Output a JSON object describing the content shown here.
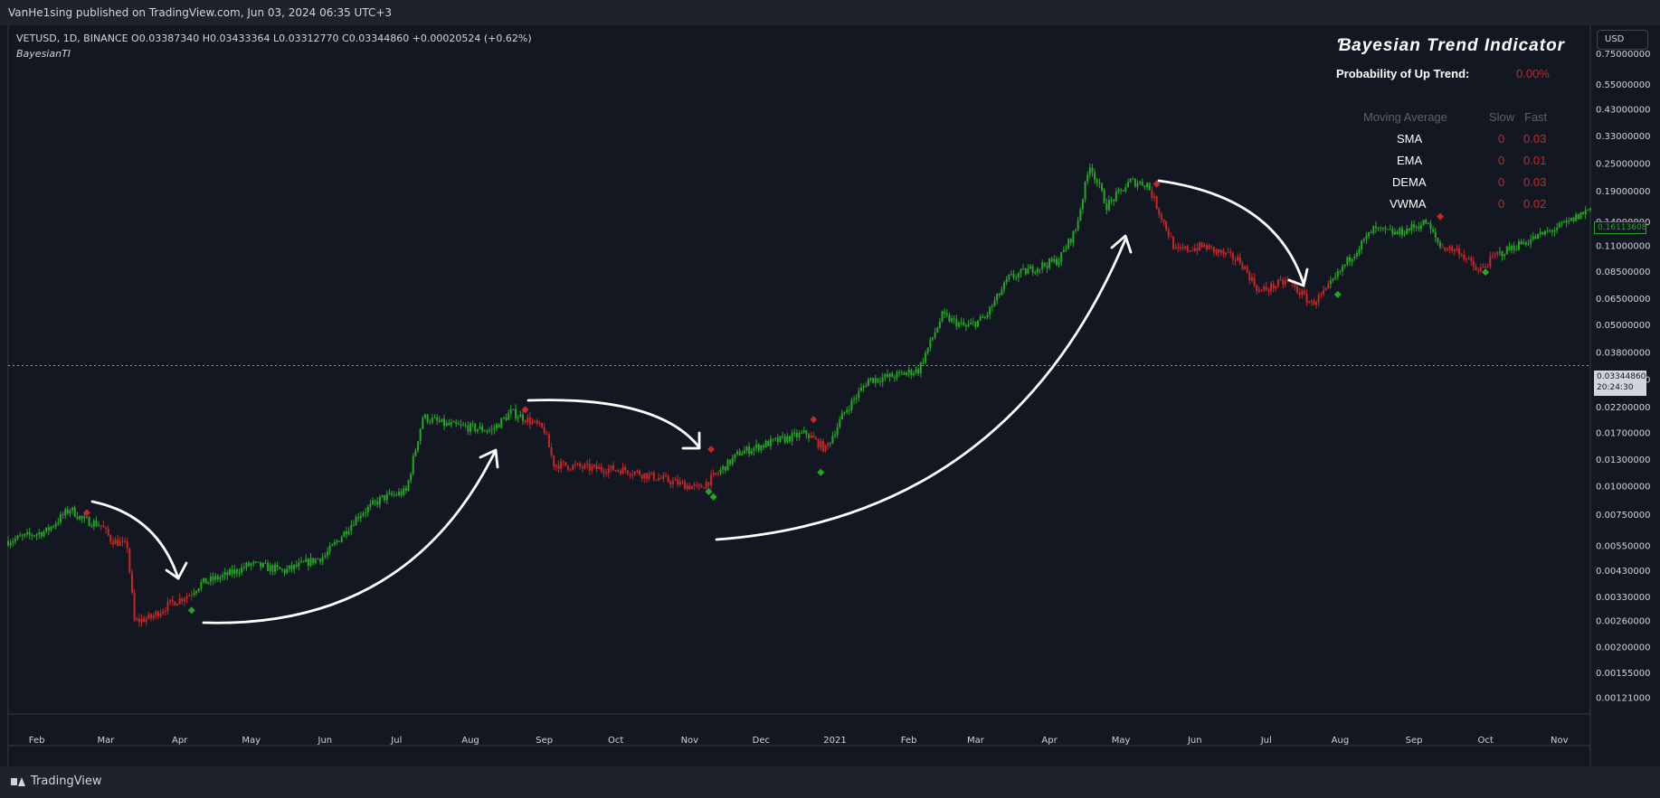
{
  "header": {
    "published": "VanHe1sing published on TradingView.com, Jun 03, 2024 06:35 UTC+3"
  },
  "legend": {
    "symbol_line": "VETUSD, 1D, BINANCE  O0.03387340  H0.03433364  L0.03312770  C0.03344860  +0.00020524 (+0.62%)",
    "indicator": "BayesianTI"
  },
  "currency_button": "USD",
  "indicator_table": {
    "title": "Ɓayesian Trend Indicator",
    "probability_label": "Probability of Up Trend:",
    "probability_value": "0.00%",
    "col_ma": "Moving Average",
    "col_slow": "Slow",
    "col_fast": "Fast",
    "rows": [
      {
        "name": "SMA",
        "slow": "0",
        "fast": "0.03"
      },
      {
        "name": "EMA",
        "slow": "0",
        "fast": "0.01"
      },
      {
        "name": "DEMA",
        "slow": "0",
        "fast": "0.03"
      },
      {
        "name": "VWMA",
        "slow": "0",
        "fast": "0.02"
      }
    ]
  },
  "price_tags": {
    "last_price": "0.16113608",
    "crosshair_price": "0.03344860",
    "crosshair_time": "20:24:30"
  },
  "footer": {
    "brand": "TradingView"
  },
  "colors": {
    "background": "#131722",
    "bull": "#26a626",
    "bear": "#c62828",
    "text": "#d1d4dc"
  },
  "chart_data": {
    "type": "candlestick",
    "y_scale": "log",
    "ylim": [
      0.00105,
      0.93
    ],
    "y_ticks": [
      "0.75000000",
      "0.55000000",
      "0.43000000",
      "0.33000000",
      "0.25000000",
      "0.19000000",
      "0.14000000",
      "0.11000000",
      "0.08500000",
      "0.06500000",
      "0.05000000",
      "0.03800000",
      "0.02900000",
      "0.02200000",
      "0.01700000",
      "0.01300000",
      "0.01000000",
      "0.00750000",
      "0.00550000",
      "0.00430000",
      "0.00330000",
      "0.00260000",
      "0.00200000",
      "0.00155000",
      "0.00121000"
    ],
    "x_range": [
      "2020-01-20",
      "2021-11-14"
    ],
    "x_ticks": [
      {
        "date": "2020-02-01",
        "label": "Feb"
      },
      {
        "date": "2020-03-01",
        "label": "Mar"
      },
      {
        "date": "2020-04-01",
        "label": "Apr"
      },
      {
        "date": "2020-05-01",
        "label": "May"
      },
      {
        "date": "2020-06-01",
        "label": "Jun"
      },
      {
        "date": "2020-07-01",
        "label": "Jul"
      },
      {
        "date": "2020-08-01",
        "label": "Aug"
      },
      {
        "date": "2020-09-01",
        "label": "Sep"
      },
      {
        "date": "2020-10-01",
        "label": "Oct"
      },
      {
        "date": "2020-11-01",
        "label": "Nov"
      },
      {
        "date": "2020-12-01",
        "label": "Dec"
      },
      {
        "date": "2021-01-01",
        "label": "2021"
      },
      {
        "date": "2021-02-01",
        "label": "Feb"
      },
      {
        "date": "2021-03-01",
        "label": "Mar"
      },
      {
        "date": "2021-04-01",
        "label": "Apr"
      },
      {
        "date": "2021-05-01",
        "label": "May"
      },
      {
        "date": "2021-06-01",
        "label": "Jun"
      },
      {
        "date": "2021-07-01",
        "label": "Jul"
      },
      {
        "date": "2021-08-01",
        "label": "Aug"
      },
      {
        "date": "2021-09-01",
        "label": "Sep"
      },
      {
        "date": "2021-10-01",
        "label": "Oct"
      },
      {
        "date": "2021-11-01",
        "label": "Nov"
      }
    ],
    "path": [
      {
        "date": "2020-01-20",
        "close": 0.0058
      },
      {
        "date": "2020-02-05",
        "close": 0.0064
      },
      {
        "date": "2020-02-15",
        "close": 0.008
      },
      {
        "date": "2020-02-20",
        "close": 0.0072
      },
      {
        "date": "2020-02-28",
        "close": 0.0068
      },
      {
        "date": "2020-03-03",
        "close": 0.0059
      },
      {
        "date": "2020-03-10",
        "close": 0.0055
      },
      {
        "date": "2020-03-13",
        "close": 0.0026
      },
      {
        "date": "2020-03-20",
        "close": 0.0027
      },
      {
        "date": "2020-03-28",
        "close": 0.0031
      },
      {
        "date": "2020-04-05",
        "close": 0.0034
      },
      {
        "date": "2020-04-10",
        "close": 0.0038
      },
      {
        "date": "2020-04-20",
        "close": 0.0041
      },
      {
        "date": "2020-05-01",
        "close": 0.0046
      },
      {
        "date": "2020-05-15",
        "close": 0.0043
      },
      {
        "date": "2020-06-01",
        "close": 0.005
      },
      {
        "date": "2020-06-15",
        "close": 0.0075
      },
      {
        "date": "2020-06-25",
        "close": 0.0089
      },
      {
        "date": "2020-07-05",
        "close": 0.0095
      },
      {
        "date": "2020-07-12",
        "close": 0.02
      },
      {
        "date": "2020-07-22",
        "close": 0.0185
      },
      {
        "date": "2020-08-01",
        "close": 0.018
      },
      {
        "date": "2020-08-10",
        "close": 0.0175
      },
      {
        "date": "2020-08-18",
        "close": 0.021
      },
      {
        "date": "2020-08-25",
        "close": 0.0195
      },
      {
        "date": "2020-09-01",
        "close": 0.0175
      },
      {
        "date": "2020-09-05",
        "close": 0.0125
      },
      {
        "date": "2020-09-20",
        "close": 0.012
      },
      {
        "date": "2020-10-05",
        "close": 0.0118
      },
      {
        "date": "2020-10-20",
        "close": 0.0108
      },
      {
        "date": "2020-11-05",
        "close": 0.0098
      },
      {
        "date": "2020-11-12",
        "close": 0.0112
      },
      {
        "date": "2020-11-22",
        "close": 0.014
      },
      {
        "date": "2020-12-05",
        "close": 0.0155
      },
      {
        "date": "2020-12-20",
        "close": 0.017
      },
      {
        "date": "2020-12-28",
        "close": 0.0145
      },
      {
        "date": "2021-01-05",
        "close": 0.021
      },
      {
        "date": "2021-01-15",
        "close": 0.029
      },
      {
        "date": "2021-01-25",
        "close": 0.03
      },
      {
        "date": "2021-02-05",
        "close": 0.032
      },
      {
        "date": "2021-02-15",
        "close": 0.055
      },
      {
        "date": "2021-02-25",
        "close": 0.049
      },
      {
        "date": "2021-03-05",
        "close": 0.054
      },
      {
        "date": "2021-03-15",
        "close": 0.08
      },
      {
        "date": "2021-03-25",
        "close": 0.088
      },
      {
        "date": "2021-04-05",
        "close": 0.096
      },
      {
        "date": "2021-04-12",
        "close": 0.13
      },
      {
        "date": "2021-04-18",
        "close": 0.25
      },
      {
        "date": "2021-04-25",
        "close": 0.165
      },
      {
        "date": "2021-05-05",
        "close": 0.21
      },
      {
        "date": "2021-05-12",
        "close": 0.205
      },
      {
        "date": "2021-05-19",
        "close": 0.14
      },
      {
        "date": "2021-05-24",
        "close": 0.105
      },
      {
        "date": "2021-06-05",
        "close": 0.11
      },
      {
        "date": "2021-06-20",
        "close": 0.095
      },
      {
        "date": "2021-06-28",
        "close": 0.07
      },
      {
        "date": "2021-07-10",
        "close": 0.078
      },
      {
        "date": "2021-07-20",
        "close": 0.062
      },
      {
        "date": "2021-07-26",
        "close": 0.07
      },
      {
        "date": "2021-08-05",
        "close": 0.098
      },
      {
        "date": "2021-08-15",
        "close": 0.13
      },
      {
        "date": "2021-08-25",
        "close": 0.125
      },
      {
        "date": "2021-09-06",
        "close": 0.14
      },
      {
        "date": "2021-09-12",
        "close": 0.11
      },
      {
        "date": "2021-09-20",
        "close": 0.105
      },
      {
        "date": "2021-09-28",
        "close": 0.085
      },
      {
        "date": "2021-10-05",
        "close": 0.1
      },
      {
        "date": "2021-10-15",
        "close": 0.112
      },
      {
        "date": "2021-10-25",
        "close": 0.124
      },
      {
        "date": "2021-11-05",
        "close": 0.14
      },
      {
        "date": "2021-11-14",
        "close": 0.1611
      }
    ],
    "bearish_segments": [
      [
        "2020-02-28",
        "2020-04-06"
      ],
      [
        "2020-08-24",
        "2020-11-13"
      ],
      [
        "2020-12-22",
        "2020-12-29"
      ],
      [
        "2021-05-14",
        "2021-07-27"
      ],
      [
        "2021-09-13",
        "2021-10-06"
      ]
    ],
    "signals": [
      {
        "date": "2020-02-22",
        "price": 0.0077,
        "type": "sell"
      },
      {
        "date": "2020-04-06",
        "price": 0.0029,
        "type": "buy"
      },
      {
        "date": "2020-08-24",
        "price": 0.0215,
        "type": "sell"
      },
      {
        "date": "2020-11-10",
        "price": 0.0145,
        "type": "sell"
      },
      {
        "date": "2020-11-09",
        "price": 0.0095,
        "type": "buy"
      },
      {
        "date": "2020-11-11",
        "price": 0.009,
        "type": "buy"
      },
      {
        "date": "2020-12-23",
        "price": 0.0195,
        "type": "sell"
      },
      {
        "date": "2020-12-26",
        "price": 0.0115,
        "type": "buy"
      },
      {
        "date": "2021-05-16",
        "price": 0.205,
        "type": "sell"
      },
      {
        "date": "2021-07-31",
        "price": 0.068,
        "type": "buy"
      },
      {
        "date": "2021-09-12",
        "price": 0.148,
        "type": "sell"
      },
      {
        "date": "2021-10-01",
        "price": 0.085,
        "type": "buy"
      }
    ],
    "crosshair_price": 0.0334486,
    "last_price": 0.16113608
  }
}
